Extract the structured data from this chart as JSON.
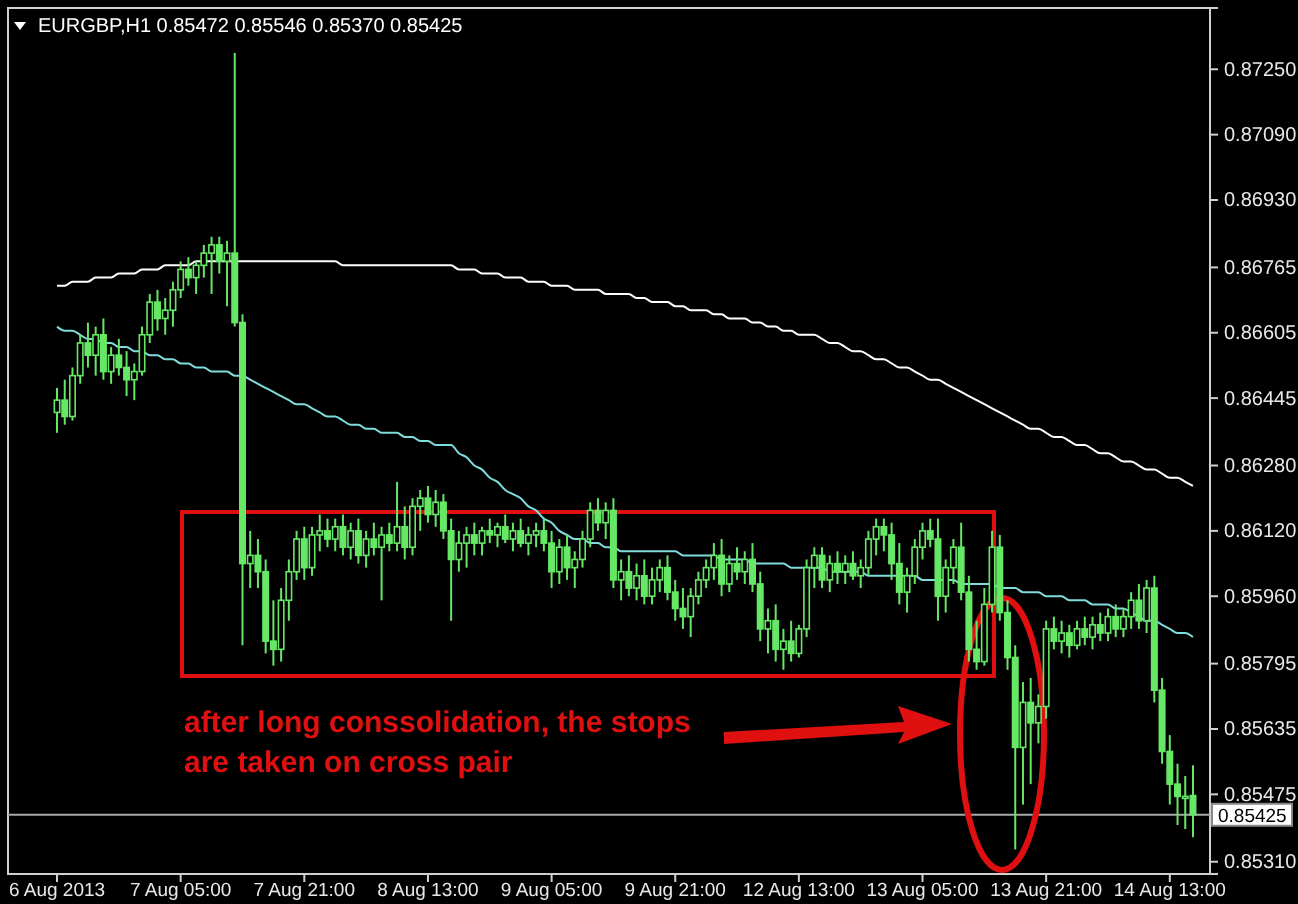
{
  "chart_data": {
    "type": "candlestick",
    "title": "EURGBP,H1 0.85472 0.85546 0.85370 0.85425",
    "categories": [
      "6 Aug 2013",
      null,
      null,
      null,
      null,
      null,
      null,
      null,
      null,
      null,
      null,
      null,
      null,
      null,
      null,
      null,
      "7 Aug 05:00",
      null,
      null,
      null,
      null,
      null,
      null,
      null,
      null,
      null,
      null,
      null,
      null,
      null,
      null,
      null,
      "7 Aug 21:00",
      null,
      null,
      null,
      null,
      null,
      null,
      null,
      null,
      null,
      null,
      null,
      null,
      null,
      null,
      null,
      "8 Aug 13:00",
      null,
      null,
      null,
      null,
      null,
      null,
      null,
      null,
      null,
      null,
      null,
      null,
      null,
      null,
      null,
      "9 Aug 05:00",
      null,
      null,
      null,
      null,
      null,
      null,
      null,
      null,
      null,
      null,
      null,
      null,
      null,
      null,
      null,
      "9 Aug 21:00",
      null,
      null,
      null,
      null,
      null,
      null,
      null,
      null,
      null,
      null,
      null,
      null,
      null,
      null,
      null,
      "12 Aug 13:00",
      null,
      null,
      null,
      null,
      null,
      null,
      null,
      null,
      null,
      null,
      null,
      null,
      null,
      null,
      null,
      "13 Aug 05:00",
      null,
      null,
      null,
      null,
      null,
      null,
      null,
      null,
      null,
      null,
      null,
      null,
      null,
      null,
      null,
      "13 Aug 21:00",
      null,
      null,
      null,
      null,
      null,
      null,
      null,
      null,
      null,
      null,
      null,
      null,
      null,
      null,
      null,
      "14 Aug 13:00",
      null,
      null,
      null
    ],
    "color": "#66e866",
    "ohlc": [
      [
        0.8641,
        0.8647,
        0.8636,
        0.8644
      ],
      [
        0.8644,
        0.8649,
        0.8638,
        0.864
      ],
      [
        0.864,
        0.8652,
        0.8639,
        0.865
      ],
      [
        0.865,
        0.866,
        0.8648,
        0.8658
      ],
      [
        0.8658,
        0.8663,
        0.8652,
        0.8655
      ],
      [
        0.8655,
        0.8662,
        0.865,
        0.866
      ],
      [
        0.866,
        0.8664,
        0.8649,
        0.8651
      ],
      [
        0.8651,
        0.8657,
        0.8648,
        0.8655
      ],
      [
        0.8655,
        0.8659,
        0.865,
        0.8652
      ],
      [
        0.8652,
        0.8656,
        0.8645,
        0.8649
      ],
      [
        0.8649,
        0.8653,
        0.8644,
        0.8651
      ],
      [
        0.8651,
        0.8662,
        0.865,
        0.866
      ],
      [
        0.866,
        0.867,
        0.8658,
        0.8668
      ],
      [
        0.8668,
        0.8671,
        0.8661,
        0.8664
      ],
      [
        0.8664,
        0.8669,
        0.866,
        0.8666
      ],
      [
        0.8666,
        0.8673,
        0.8662,
        0.8671
      ],
      [
        0.8671,
        0.8678,
        0.8669,
        0.8676
      ],
      [
        0.8676,
        0.8679,
        0.8672,
        0.8674
      ],
      [
        0.8674,
        0.8678,
        0.867,
        0.8677
      ],
      [
        0.8677,
        0.8682,
        0.8674,
        0.868
      ],
      [
        0.868,
        0.8684,
        0.867,
        0.8682
      ],
      [
        0.8682,
        0.8684,
        0.8675,
        0.8678
      ],
      [
        0.8678,
        0.8683,
        0.8667,
        0.868
      ],
      [
        0.868,
        0.8729,
        0.8662,
        0.8663
      ],
      [
        0.8663,
        0.8665,
        0.8584,
        0.8604
      ],
      [
        0.8604,
        0.8612,
        0.8598,
        0.8606
      ],
      [
        0.8606,
        0.861,
        0.8598,
        0.8602
      ],
      [
        0.8602,
        0.8605,
        0.8582,
        0.8585
      ],
      [
        0.8585,
        0.8595,
        0.8579,
        0.8583
      ],
      [
        0.8583,
        0.8598,
        0.858,
        0.8595
      ],
      [
        0.8595,
        0.8605,
        0.859,
        0.8602
      ],
      [
        0.8602,
        0.8612,
        0.86,
        0.861
      ],
      [
        0.861,
        0.8613,
        0.86,
        0.8603
      ],
      [
        0.8603,
        0.8613,
        0.8601,
        0.8611
      ],
      [
        0.8611,
        0.8616,
        0.8607,
        0.8612
      ],
      [
        0.8612,
        0.8615,
        0.8608,
        0.861
      ],
      [
        0.861,
        0.8615,
        0.8607,
        0.8613
      ],
      [
        0.8613,
        0.8616,
        0.8606,
        0.8608
      ],
      [
        0.8608,
        0.8614,
        0.8605,
        0.8612
      ],
      [
        0.8612,
        0.8615,
        0.8604,
        0.8606
      ],
      [
        0.8606,
        0.8612,
        0.8603,
        0.861
      ],
      [
        0.861,
        0.8614,
        0.8606,
        0.8608
      ],
      [
        0.8608,
        0.8613,
        0.8595,
        0.8611
      ],
      [
        0.8611,
        0.8614,
        0.8607,
        0.8609
      ],
      [
        0.8609,
        0.8624,
        0.8607,
        0.8613
      ],
      [
        0.8613,
        0.8618,
        0.8605,
        0.8608
      ],
      [
        0.8608,
        0.862,
        0.8606,
        0.8618
      ],
      [
        0.8618,
        0.8622,
        0.8612,
        0.862
      ],
      [
        0.862,
        0.8623,
        0.8614,
        0.8616
      ],
      [
        0.8616,
        0.8622,
        0.8613,
        0.8619
      ],
      [
        0.8619,
        0.8621,
        0.861,
        0.8612
      ],
      [
        0.8612,
        0.8615,
        0.859,
        0.8605
      ],
      [
        0.8605,
        0.8612,
        0.8602,
        0.8609
      ],
      [
        0.8609,
        0.8613,
        0.8603,
        0.8611
      ],
      [
        0.8611,
        0.8614,
        0.8606,
        0.8609
      ],
      [
        0.8609,
        0.8613,
        0.8606,
        0.8612
      ],
      [
        0.8612,
        0.8615,
        0.8609,
        0.8611
      ],
      [
        0.8611,
        0.8614,
        0.8608,
        0.8613
      ],
      [
        0.8613,
        0.8616,
        0.8609,
        0.861
      ],
      [
        0.861,
        0.8614,
        0.8607,
        0.8612
      ],
      [
        0.8612,
        0.8615,
        0.8608,
        0.8609
      ],
      [
        0.8609,
        0.8613,
        0.8606,
        0.8611
      ],
      [
        0.8611,
        0.8614,
        0.8608,
        0.8612
      ],
      [
        0.8612,
        0.8615,
        0.8607,
        0.8609
      ],
      [
        0.8609,
        0.8612,
        0.8598,
        0.8602
      ],
      [
        0.8602,
        0.861,
        0.8599,
        0.8608
      ],
      [
        0.8608,
        0.8611,
        0.86,
        0.8603
      ],
      [
        0.8603,
        0.8607,
        0.8598,
        0.8605
      ],
      [
        0.8605,
        0.8612,
        0.8603,
        0.861
      ],
      [
        0.861,
        0.8619,
        0.8608,
        0.8617
      ],
      [
        0.8617,
        0.862,
        0.8612,
        0.8614
      ],
      [
        0.8614,
        0.8619,
        0.861,
        0.8617
      ],
      [
        0.8617,
        0.862,
        0.8598,
        0.86
      ],
      [
        0.86,
        0.8605,
        0.8595,
        0.8602
      ],
      [
        0.8602,
        0.8606,
        0.8596,
        0.8598
      ],
      [
        0.8598,
        0.8604,
        0.8595,
        0.8601
      ],
      [
        0.8601,
        0.8605,
        0.8594,
        0.8596
      ],
      [
        0.8596,
        0.8603,
        0.8594,
        0.86
      ],
      [
        0.86,
        0.8605,
        0.8597,
        0.8603
      ],
      [
        0.8603,
        0.8606,
        0.8595,
        0.8597
      ],
      [
        0.8597,
        0.86,
        0.859,
        0.8593
      ],
      [
        0.8593,
        0.8598,
        0.8588,
        0.8591
      ],
      [
        0.8591,
        0.8598,
        0.8586,
        0.8596
      ],
      [
        0.8596,
        0.8602,
        0.8594,
        0.86
      ],
      [
        0.86,
        0.8605,
        0.8598,
        0.8603
      ],
      [
        0.8603,
        0.8609,
        0.86,
        0.8606
      ],
      [
        0.8606,
        0.861,
        0.8596,
        0.8599
      ],
      [
        0.8599,
        0.8606,
        0.8597,
        0.8604
      ],
      [
        0.8604,
        0.8608,
        0.86,
        0.8602
      ],
      [
        0.8602,
        0.8607,
        0.8599,
        0.8605
      ],
      [
        0.8605,
        0.8609,
        0.8597,
        0.8599
      ],
      [
        0.8599,
        0.8602,
        0.8585,
        0.8588
      ],
      [
        0.8588,
        0.8593,
        0.8582,
        0.859
      ],
      [
        0.859,
        0.8594,
        0.858,
        0.8583
      ],
      [
        0.8583,
        0.8588,
        0.8578,
        0.8585
      ],
      [
        0.8585,
        0.859,
        0.858,
        0.8582
      ],
      [
        0.8582,
        0.8589,
        0.8581,
        0.8588
      ],
      [
        0.8588,
        0.8605,
        0.8586,
        0.8603
      ],
      [
        0.8603,
        0.8608,
        0.8598,
        0.8606
      ],
      [
        0.8606,
        0.8608,
        0.8598,
        0.86
      ],
      [
        0.86,
        0.8606,
        0.8597,
        0.8604
      ],
      [
        0.8604,
        0.8607,
        0.8599,
        0.8602
      ],
      [
        0.8602,
        0.8606,
        0.8599,
        0.8604
      ],
      [
        0.8604,
        0.8607,
        0.86,
        0.8601
      ],
      [
        0.8601,
        0.8605,
        0.8598,
        0.8603
      ],
      [
        0.8603,
        0.8612,
        0.8601,
        0.861
      ],
      [
        0.861,
        0.8615,
        0.8606,
        0.8613
      ],
      [
        0.8613,
        0.8615,
        0.8607,
        0.8611
      ],
      [
        0.8611,
        0.8614,
        0.86,
        0.8604
      ],
      [
        0.8604,
        0.8609,
        0.8594,
        0.8597
      ],
      [
        0.8597,
        0.8603,
        0.8592,
        0.8601
      ],
      [
        0.8601,
        0.861,
        0.8599,
        0.8608
      ],
      [
        0.8608,
        0.8614,
        0.8605,
        0.8612
      ],
      [
        0.8612,
        0.8615,
        0.8608,
        0.861
      ],
      [
        0.861,
        0.8615,
        0.859,
        0.8596
      ],
      [
        0.8596,
        0.8605,
        0.8592,
        0.8603
      ],
      [
        0.8603,
        0.861,
        0.8599,
        0.8608
      ],
      [
        0.8608,
        0.8614,
        0.8595,
        0.8597
      ],
      [
        0.8597,
        0.8601,
        0.858,
        0.8583
      ],
      [
        0.8583,
        0.859,
        0.8578,
        0.858
      ],
      [
        0.858,
        0.8598,
        0.8579,
        0.8594
      ],
      [
        0.8594,
        0.8612,
        0.8592,
        0.8608
      ],
      [
        0.8608,
        0.8611,
        0.859,
        0.8592
      ],
      [
        0.8592,
        0.8595,
        0.8578,
        0.8581
      ],
      [
        0.8581,
        0.8584,
        0.8534,
        0.8559
      ],
      [
        0.8559,
        0.8575,
        0.8545,
        0.857
      ],
      [
        0.857,
        0.8576,
        0.855,
        0.8565
      ],
      [
        0.8565,
        0.8572,
        0.856,
        0.8569
      ],
      [
        0.8569,
        0.859,
        0.8566,
        0.8588
      ],
      [
        0.8588,
        0.8591,
        0.8583,
        0.8585
      ],
      [
        0.8585,
        0.859,
        0.8582,
        0.8587
      ],
      [
        0.8587,
        0.8589,
        0.8581,
        0.8584
      ],
      [
        0.8584,
        0.859,
        0.8583,
        0.8588
      ],
      [
        0.8588,
        0.8591,
        0.8584,
        0.8586
      ],
      [
        0.8586,
        0.8591,
        0.8583,
        0.8589
      ],
      [
        0.8589,
        0.8592,
        0.8585,
        0.8587
      ],
      [
        0.8587,
        0.8593,
        0.8585,
        0.8591
      ],
      [
        0.8591,
        0.8594,
        0.8586,
        0.8588
      ],
      [
        0.8588,
        0.8593,
        0.8586,
        0.8591
      ],
      [
        0.8591,
        0.8597,
        0.8588,
        0.8595
      ],
      [
        0.8595,
        0.8599,
        0.8588,
        0.859
      ],
      [
        0.859,
        0.86,
        0.8587,
        0.8598
      ],
      [
        0.8598,
        0.8601,
        0.857,
        0.8573
      ],
      [
        0.8573,
        0.8576,
        0.8555,
        0.8558
      ],
      [
        0.8558,
        0.8562,
        0.8545,
        0.855
      ],
      [
        0.855,
        0.8555,
        0.854,
        0.8547
      ],
      [
        0.8547,
        0.8552,
        0.8539,
        0.8547
      ],
      [
        0.85472,
        0.85546,
        0.8537,
        0.85425
      ]
    ],
    "series": [
      {
        "type": "line",
        "color": "#ffffff",
        "values": [
          0.8672,
          0.8672,
          0.8673,
          0.8673,
          0.8673,
          0.8674,
          0.8674,
          0.8674,
          0.8675,
          0.8675,
          0.8675,
          0.8676,
          0.8676,
          0.8676,
          0.8677,
          0.8677,
          0.8677,
          0.8677,
          0.8678,
          0.8678,
          0.8678,
          0.8678,
          0.8678,
          0.8678,
          0.8678,
          0.8678,
          0.8678,
          0.8678,
          0.8678,
          0.8678,
          0.8678,
          0.8678,
          0.8678,
          0.8678,
          0.8678,
          0.8678,
          0.8678,
          0.8677,
          0.8677,
          0.8677,
          0.8677,
          0.8677,
          0.8677,
          0.8677,
          0.8677,
          0.8677,
          0.8677,
          0.8677,
          0.8677,
          0.8677,
          0.8677,
          0.8677,
          0.8676,
          0.8676,
          0.8676,
          0.8675,
          0.8675,
          0.8675,
          0.8674,
          0.8674,
          0.8674,
          0.8673,
          0.8673,
          0.8673,
          0.8672,
          0.8672,
          0.8672,
          0.8671,
          0.8671,
          0.8671,
          0.8671,
          0.867,
          0.867,
          0.867,
          0.867,
          0.8669,
          0.8669,
          0.8668,
          0.8668,
          0.8668,
          0.8667,
          0.8667,
          0.8666,
          0.8666,
          0.8666,
          0.8665,
          0.8665,
          0.8664,
          0.8664,
          0.8664,
          0.8663,
          0.8663,
          0.8662,
          0.8662,
          0.8661,
          0.8661,
          0.866,
          0.866,
          0.866,
          0.8659,
          0.8658,
          0.8658,
          0.8657,
          0.8656,
          0.8656,
          0.8655,
          0.8654,
          0.8654,
          0.8653,
          0.8652,
          0.8652,
          0.8651,
          0.865,
          0.8649,
          0.8649,
          0.8648,
          0.8647,
          0.8646,
          0.8645,
          0.8644,
          0.8643,
          0.8642,
          0.8641,
          0.864,
          0.8639,
          0.8638,
          0.8637,
          0.8637,
          0.8636,
          0.8635,
          0.8635,
          0.8634,
          0.8633,
          0.8633,
          0.8632,
          0.8631,
          0.8631,
          0.863,
          0.8629,
          0.8629,
          0.8628,
          0.8627,
          0.8627,
          0.8626,
          0.8625,
          0.8625,
          0.8624,
          0.8623
        ]
      },
      {
        "type": "line",
        "color": "#7fdcdc",
        "values": [
          0.8662,
          0.8661,
          0.8661,
          0.866,
          0.8659,
          0.8659,
          0.8658,
          0.8658,
          0.8657,
          0.8657,
          0.8656,
          0.8656,
          0.8655,
          0.8655,
          0.8654,
          0.8654,
          0.8653,
          0.8653,
          0.8652,
          0.8652,
          0.8651,
          0.8651,
          0.8651,
          0.865,
          0.865,
          0.8649,
          0.8648,
          0.8647,
          0.8646,
          0.8645,
          0.8644,
          0.8643,
          0.8643,
          0.8642,
          0.8641,
          0.864,
          0.864,
          0.8639,
          0.8638,
          0.8638,
          0.8637,
          0.8637,
          0.8636,
          0.8636,
          0.8636,
          0.8635,
          0.8635,
          0.8634,
          0.8634,
          0.8633,
          0.8633,
          0.8633,
          0.8631,
          0.863,
          0.8628,
          0.8627,
          0.8625,
          0.8624,
          0.8622,
          0.8621,
          0.862,
          0.8618,
          0.8617,
          0.8615,
          0.8614,
          0.8612,
          0.8611,
          0.861,
          0.861,
          0.8609,
          0.8609,
          0.8608,
          0.8608,
          0.8607,
          0.8607,
          0.8607,
          0.8607,
          0.8607,
          0.8607,
          0.8607,
          0.8607,
          0.8606,
          0.8606,
          0.8606,
          0.8606,
          0.8606,
          0.8605,
          0.8605,
          0.8605,
          0.8605,
          0.8604,
          0.8604,
          0.8604,
          0.8604,
          0.8604,
          0.8603,
          0.8603,
          0.8603,
          0.8603,
          0.8603,
          0.8602,
          0.8602,
          0.8602,
          0.8602,
          0.8602,
          0.8601,
          0.8601,
          0.8601,
          0.8601,
          0.8601,
          0.8601,
          0.8601,
          0.86,
          0.86,
          0.86,
          0.86,
          0.86,
          0.8599,
          0.8599,
          0.8599,
          0.8599,
          0.8599,
          0.8598,
          0.8598,
          0.8598,
          0.8597,
          0.8597,
          0.8597,
          0.8596,
          0.8596,
          0.8596,
          0.8595,
          0.8595,
          0.8595,
          0.8594,
          0.8594,
          0.8594,
          0.8593,
          0.8593,
          0.8592,
          0.8591,
          0.859,
          0.859,
          0.8589,
          0.8588,
          0.8587,
          0.8587,
          0.8586
        ]
      }
    ],
    "ylim": [
      0.8528,
      0.874
    ],
    "yticks": [
      {
        "value": 0.8725,
        "label": "0.87250"
      },
      {
        "value": 0.8709,
        "label": "0.87090"
      },
      {
        "value": 0.8693,
        "label": "0.86930"
      },
      0.86765,
      0.86605,
      0.86445,
      {
        "value": 0.8628,
        "label": "0.86280"
      },
      {
        "value": 0.8612,
        "label": "0.86120"
      },
      {
        "value": 0.8596,
        "label": "0.85960"
      },
      0.85795,
      0.85635,
      0.85475,
      {
        "value": 0.8531,
        "label": "0.85310"
      }
    ],
    "ref_lines": [
      {
        "axis": "y",
        "value": 0.85425,
        "label": "0.85425",
        "color": "#a8a8a8"
      }
    ],
    "annotations": [
      "after long conssolidation, the stops are taken on cross pair"
    ],
    "grid": false
  }
}
